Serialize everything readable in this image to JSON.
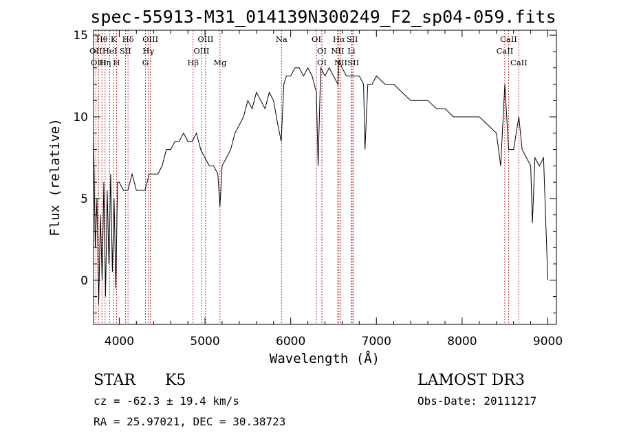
{
  "chart_data": {
    "type": "line",
    "title": "spec-55913-M31_014139N300249_F2_sp04-059.fits",
    "xlabel": "Wavelength (Å)",
    "ylabel": "Flux (relative)",
    "xlim": [
      3700,
      9100
    ],
    "ylim": [
      -2.7,
      15.3
    ],
    "xticks": [
      4000,
      5000,
      6000,
      7000,
      8000,
      9000
    ],
    "yticks": [
      0,
      5,
      10,
      15
    ],
    "grid": false,
    "series": [
      {
        "x": [
          3700,
          3720,
          3740,
          3760,
          3780,
          3800,
          3820,
          3840,
          3860,
          3880,
          3900,
          3920,
          3940,
          3960,
          3980,
          4000,
          4050,
          4100,
          4150,
          4200,
          4250,
          4300,
          4350,
          4400,
          4450,
          4500,
          4550,
          4600,
          4650,
          4700,
          4750,
          4800,
          4850,
          4900,
          4950,
          5000,
          5050,
          5100,
          5150,
          5175,
          5200,
          5250,
          5300,
          5350,
          5400,
          5450,
          5500,
          5550,
          5600,
          5650,
          5700,
          5750,
          5800,
          5850,
          5890,
          5920,
          5950,
          6000,
          6050,
          6100,
          6150,
          6200,
          6250,
          6300,
          6320,
          6350,
          6400,
          6450,
          6500,
          6550,
          6563,
          6600,
          6650,
          6700,
          6750,
          6800,
          6850,
          6867,
          6900,
          6950,
          7000,
          7100,
          7200,
          7300,
          7400,
          7500,
          7600,
          7700,
          7800,
          7900,
          8000,
          8100,
          8200,
          8300,
          8400,
          8450,
          8498,
          8542,
          8600,
          8662,
          8700,
          8750,
          8800,
          8820,
          8850,
          8900,
          8950,
          9000
        ],
        "values": [
          9.0,
          2.0,
          5.0,
          -1.5,
          4.0,
          0.0,
          6.0,
          -1.0,
          5.5,
          1.0,
          6.5,
          0.5,
          5.0,
          -0.5,
          6.0,
          6.0,
          5.5,
          5.5,
          6.5,
          5.5,
          5.5,
          5.5,
          6.5,
          6.5,
          6.5,
          7.0,
          8.0,
          8.0,
          8.5,
          8.5,
          9.0,
          8.5,
          8.5,
          9.0,
          8.0,
          7.5,
          7.0,
          7.0,
          6.5,
          4.5,
          7.0,
          7.5,
          8.0,
          9.0,
          9.5,
          10.0,
          11.0,
          10.5,
          11.5,
          11.0,
          10.5,
          11.5,
          11.0,
          9.5,
          8.5,
          12.0,
          12.5,
          12.5,
          13.0,
          13.0,
          12.5,
          13.0,
          12.5,
          11.5,
          7.0,
          13.0,
          12.5,
          13.0,
          12.5,
          12.0,
          13.5,
          13.0,
          12.5,
          12.5,
          12.5,
          12.5,
          12.0,
          8.0,
          12.0,
          12.0,
          12.5,
          12.0,
          12.0,
          11.5,
          11.0,
          11.0,
          11.0,
          10.5,
          10.5,
          10.0,
          10.0,
          10.0,
          10.0,
          9.5,
          9.0,
          7.0,
          12.0,
          8.0,
          8.0,
          10.0,
          8.0,
          7.5,
          7.0,
          3.5,
          7.5,
          7.0,
          7.5,
          0.0
        ]
      }
    ],
    "lines": [
      {
        "label": "Hθ",
        "x": 3798
      },
      {
        "label": "K",
        "x": 3934
      },
      {
        "label": "Hδ",
        "x": 4102
      },
      {
        "label": "OIII",
        "x": 4363
      },
      {
        "label": "OIII",
        "x": 5007
      },
      {
        "label": "Na",
        "x": 5893
      },
      {
        "label": "OI",
        "x": 6300
      },
      {
        "label": "Hα",
        "x": 6563
      },
      {
        "label": "SII",
        "x": 6717
      },
      {
        "label": "CaII",
        "x": 8542
      },
      {
        "label": "OII",
        "x": 3727
      },
      {
        "label": "HeI",
        "x": 3889
      },
      {
        "label": "SII",
        "x": 4072
      },
      {
        "label": "Hγ",
        "x": 4340
      },
      {
        "label": "OIII",
        "x": 4959
      },
      {
        "label": "OI",
        "x": 6364
      },
      {
        "label": "NII",
        "x": 6548
      },
      {
        "label": "Li",
        "x": 6708
      },
      {
        "label": "CaII",
        "x": 8498
      },
      {
        "label": "OIII",
        "x": 3760
      },
      {
        "label": "Hη",
        "x": 3835
      },
      {
        "label": "H",
        "x": 3969
      },
      {
        "label": "G",
        "x": 4305
      },
      {
        "label": "Hβ",
        "x": 4861
      },
      {
        "label": "Mg",
        "x": 5175
      },
      {
        "label": "OI",
        "x": 6364
      },
      {
        "label": "NII",
        "x": 6584
      },
      {
        "label": "SII",
        "x": 6731
      },
      {
        "label": "CaII",
        "x": 8662
      }
    ]
  },
  "info": {
    "class": "STAR",
    "subclass": "K5",
    "survey": "LAMOST DR3",
    "cz": "cz = -62.3 ± 19.4 km/s",
    "obs_date": "Obs-Date: 20111217",
    "coords": "RA =  25.97021, DEC =  30.38723"
  },
  "colors": {
    "spectrum": "#000000",
    "line_marker": "#c00000"
  }
}
